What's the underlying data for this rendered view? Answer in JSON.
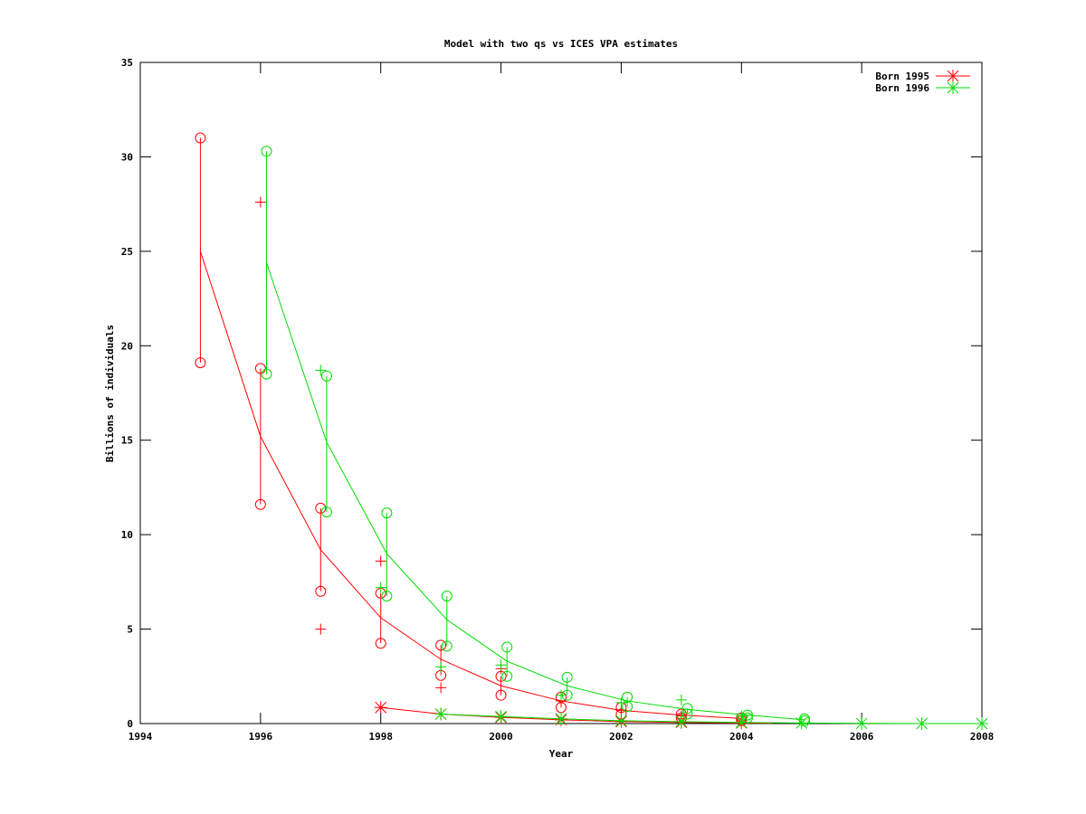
{
  "chart_data": {
    "type": "line",
    "title": "Model with two qs vs ICES VPA estimates",
    "xlabel": "Year",
    "ylabel": "Billions of individuals",
    "xlim": [
      1994,
      2008
    ],
    "ylim": [
      0,
      35
    ],
    "xticks": [
      1994,
      1996,
      1998,
      2000,
      2002,
      2004,
      2006,
      2008
    ],
    "yticks": [
      0,
      5,
      10,
      15,
      20,
      25,
      30,
      35
    ],
    "grid": false,
    "legend_position": "top-right",
    "legend": [
      {
        "label": "Born 1995",
        "color": "#ff0000"
      },
      {
        "label": "Born 1996",
        "color": "#00dd00"
      }
    ],
    "series": [
      {
        "name": "Born 1995",
        "color": "#ff0000",
        "model_line": {
          "x": [
            1995,
            1996,
            1997,
            1998,
            1999,
            2000,
            2001,
            2002,
            2003,
            2004
          ],
          "y": [
            25.0,
            15.2,
            9.2,
            5.6,
            3.4,
            2.0,
            1.2,
            0.7,
            0.45,
            0.27
          ]
        },
        "interval_high": {
          "x": [
            1995,
            1996,
            1997,
            1998,
            1999,
            2000,
            2001,
            2002,
            2003,
            2004
          ],
          "y": [
            31.0,
            18.8,
            11.4,
            6.9,
            4.15,
            2.5,
            1.4,
            0.85,
            0.5,
            0.3
          ]
        },
        "interval_low": {
          "x": [
            1995,
            1996,
            1997,
            1998,
            1999,
            2000,
            2001,
            2002,
            2003,
            2004
          ],
          "y": [
            19.1,
            11.6,
            7.0,
            4.25,
            2.55,
            1.5,
            0.85,
            0.5,
            0.3,
            0.15
          ]
        },
        "vpa_estimates": {
          "x": [
            1996,
            1997,
            1998,
            1999,
            2000,
            2001,
            2002,
            2003,
            2004
          ],
          "y": [
            27.6,
            5.0,
            8.6,
            1.9,
            2.9,
            1.2,
            0.7,
            0.4,
            0.2
          ]
        },
        "star_line": {
          "x": [
            1998,
            1999,
            2000,
            2001,
            2002,
            2003,
            2004,
            2004.5
          ],
          "y": [
            0.85,
            0.5,
            0.33,
            0.2,
            0.1,
            0.06,
            0.03,
            0.02
          ]
        }
      },
      {
        "name": "Born 1996",
        "color": "#00dd00",
        "model_line": {
          "x": [
            1996.1,
            1997.1,
            1998.1,
            1999.1,
            2000.1,
            2001.1,
            2002.1,
            2003.1,
            2004.1,
            2005.05
          ],
          "y": [
            24.4,
            14.9,
            9.0,
            5.5,
            3.3,
            2.0,
            1.2,
            0.75,
            0.45,
            0.2
          ]
        },
        "interval_high": {
          "x": [
            1996.1,
            1997.1,
            1998.1,
            1999.1,
            2000.1,
            2001.1,
            2002.1,
            2003.1,
            2004.1,
            2005.05
          ],
          "y": [
            30.3,
            18.4,
            11.15,
            6.75,
            4.05,
            2.45,
            1.4,
            0.8,
            0.45,
            0.25
          ]
        },
        "interval_low": {
          "x": [
            1996.1,
            1997.1,
            1998.1,
            1999.1,
            2000.1,
            2001.1,
            2002.1,
            2003.1,
            2004.1,
            2005.05
          ],
          "y": [
            18.5,
            11.2,
            6.75,
            4.1,
            2.5,
            1.5,
            0.9,
            0.5,
            0.3,
            0.15
          ]
        },
        "vpa_estimates": {
          "x": [
            1997,
            1998,
            1999,
            2000,
            2001,
            2002,
            2003,
            2004
          ],
          "y": [
            18.7,
            7.2,
            3.0,
            3.1,
            1.5,
            1.1,
            1.25,
            0.4
          ]
        },
        "star_line": {
          "x": [
            1999,
            2000,
            2001,
            2002,
            2003,
            2004,
            2005,
            2006,
            2007,
            2008
          ],
          "y": [
            0.5,
            0.37,
            0.25,
            0.15,
            0.1,
            0.06,
            0.03,
            0.01,
            0.0,
            0.0
          ]
        }
      }
    ]
  }
}
